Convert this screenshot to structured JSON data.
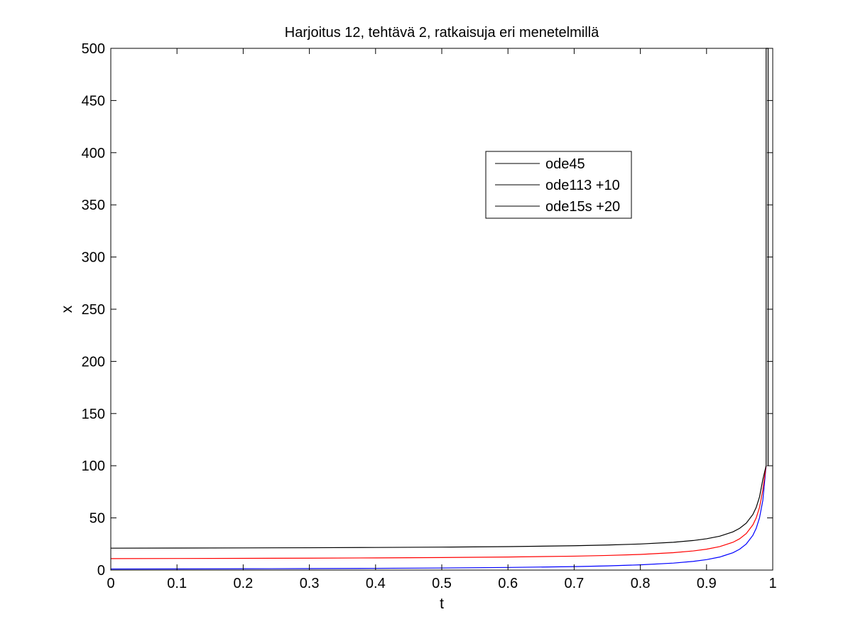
{
  "chart_data": {
    "type": "line",
    "title": "Harjoitus 12, tehtävä 2, ratkaisuja eri menetelmillä",
    "xlabel": "t",
    "ylabel": "x",
    "xlim": [
      0,
      1
    ],
    "ylim": [
      0,
      500
    ],
    "xticks": [
      "0",
      "0.1",
      "0.2",
      "0.3",
      "0.4",
      "0.5",
      "0.6",
      "0.7",
      "0.8",
      "0.9",
      "1"
    ],
    "yticks": [
      "0",
      "50",
      "100",
      "150",
      "200",
      "250",
      "300",
      "350",
      "400",
      "450",
      "500"
    ],
    "grid": false,
    "legend": {
      "placement": "upper-right-center",
      "entries": [
        "ode45",
        "ode113 +10",
        "ode15s +20"
      ]
    },
    "series": [
      {
        "name": "ode45",
        "color": "#0000ff",
        "x": [
          0,
          0.1,
          0.2,
          0.3,
          0.4,
          0.5,
          0.6,
          0.7,
          0.75,
          0.8,
          0.85,
          0.88,
          0.9,
          0.92,
          0.94,
          0.95,
          0.96,
          0.97,
          0.975,
          0.98,
          0.985,
          0.99
        ],
        "y": [
          1,
          1.11,
          1.25,
          1.43,
          1.67,
          2,
          2.5,
          3.33,
          4,
          5,
          6.67,
          8.33,
          10,
          12.5,
          16.67,
          20,
          25,
          33.33,
          40,
          50,
          66.67,
          100
        ]
      },
      {
        "name": "ode113 +10",
        "color": "#ff0000",
        "x": [
          0,
          0.1,
          0.2,
          0.3,
          0.4,
          0.5,
          0.6,
          0.7,
          0.75,
          0.8,
          0.85,
          0.88,
          0.9,
          0.92,
          0.94,
          0.95,
          0.96,
          0.97,
          0.975,
          0.98,
          0.985,
          0.99
        ],
        "y": [
          11,
          11.11,
          11.25,
          11.43,
          11.67,
          12,
          12.5,
          13.33,
          14,
          15,
          16.67,
          18.33,
          20,
          22.5,
          26.67,
          30,
          35,
          43.33,
          50,
          60,
          76.67,
          100
        ]
      },
      {
        "name": "ode15s +20",
        "color": "#000000",
        "x": [
          0,
          0.1,
          0.2,
          0.3,
          0.4,
          0.5,
          0.6,
          0.7,
          0.75,
          0.8,
          0.85,
          0.88,
          0.9,
          0.92,
          0.94,
          0.95,
          0.96,
          0.97,
          0.975,
          0.98,
          0.985,
          0.99,
          0.99,
          0.993,
          0.993
        ],
        "y": [
          21,
          21.11,
          21.25,
          21.43,
          21.67,
          22,
          22.5,
          23.33,
          24,
          25,
          26.67,
          28.33,
          30,
          32.5,
          36.67,
          40,
          45,
          53.33,
          60,
          70,
          86.67,
          100,
          500,
          500,
          100
        ]
      }
    ]
  }
}
